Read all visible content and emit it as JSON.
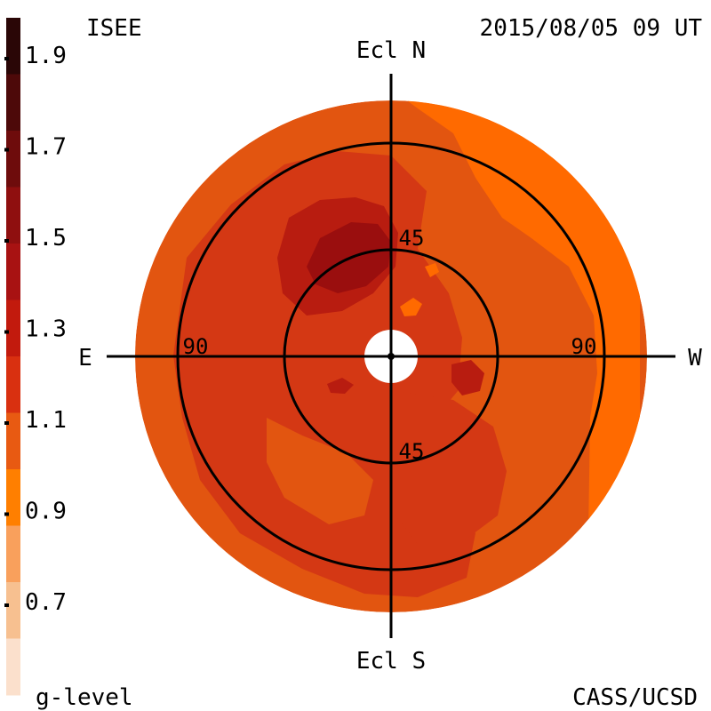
{
  "header": {
    "source": "ISEE",
    "timestamp": "2015/08/05 09 UT"
  },
  "footer": {
    "scale_title": "g-level",
    "credit": "CASS/UCSD"
  },
  "colorbar": {
    "ticks": [
      "1.9",
      "1.7",
      "1.5",
      "1.3",
      "1.1",
      "0.9",
      "0.7"
    ],
    "bands": [
      "#2a0606",
      "#4d0909",
      "#6e0c0c",
      "#8f0f0f",
      "#a81212",
      "#c21a0d",
      "#d93010",
      "#e85a12",
      "#ff7f00",
      "#f9a05c",
      "#f7c090",
      "#fbe0cc"
    ]
  },
  "map": {
    "directions": {
      "north": "Ecl N",
      "south": "Ecl S",
      "east": "E",
      "west": "W"
    },
    "ring_labels": {
      "inner_top": "45",
      "inner_bottom": "45",
      "outer_left": "90",
      "outer_right": "90"
    },
    "colors": {
      "background": "#e25510",
      "moderate": "#d43814",
      "high": "#b81c10",
      "peak": "#9a0e0e",
      "low": "#ff6a00"
    }
  }
}
